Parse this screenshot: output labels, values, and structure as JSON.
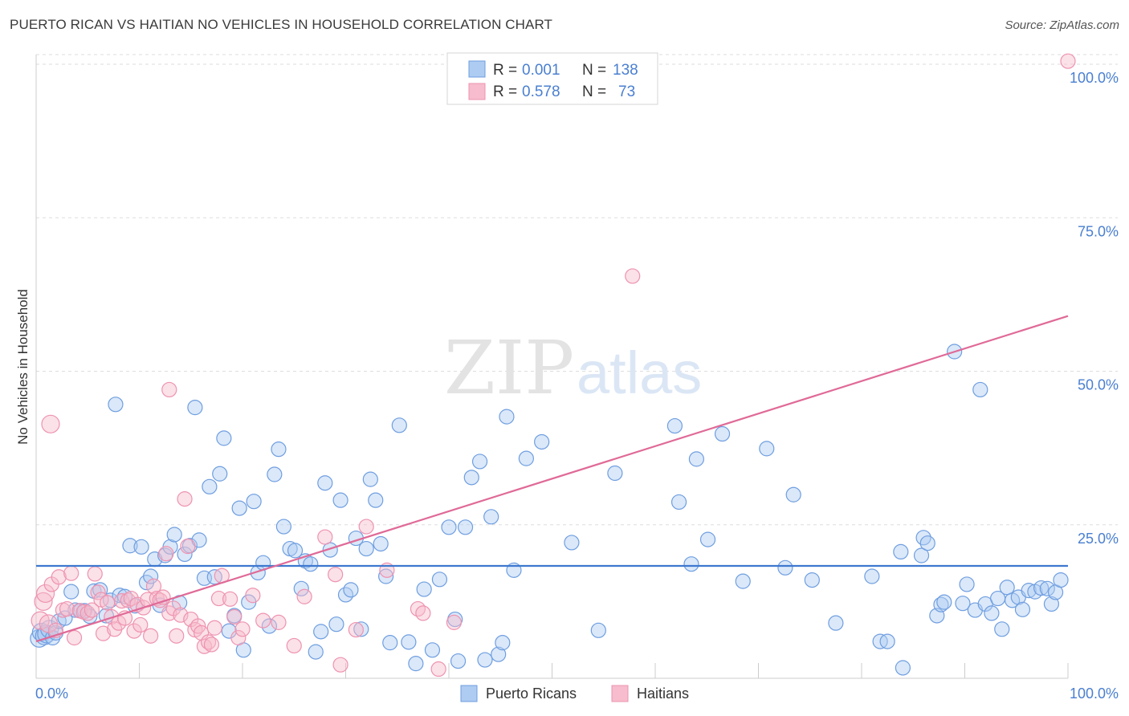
{
  "header": {
    "title": "PUERTO RICAN VS HAITIAN NO VEHICLES IN HOUSEHOLD CORRELATION CHART",
    "source": "Source: ZipAtlas.com"
  },
  "watermark": {
    "zip": "ZIP",
    "atlas": "atlas"
  },
  "colors": {
    "blue_fill": "#aecbf2",
    "blue_stroke": "#6f9ee0",
    "blue_line": "#3d78cf",
    "pink_fill": "#f7bccd",
    "pink_stroke": "#ee93b0",
    "pink_line": "#e06a97",
    "tick_text": "#4a7fd0",
    "grid": "#dddddd"
  },
  "legend": {
    "row1": {
      "r_label": "R =",
      "r_value": "0.001",
      "n_label": "N =",
      "n_value": "138"
    },
    "row2": {
      "r_label": "R =",
      "r_value": "0.578",
      "n_label": "N =",
      "n_value": "73"
    }
  },
  "chart_data": {
    "type": "scatter",
    "title": "PUERTO RICAN VS HAITIAN NO VEHICLES IN HOUSEHOLD CORRELATION CHART",
    "xlabel": "",
    "ylabel": "No Vehicles in Household",
    "xlim": [
      0,
      100
    ],
    "ylim": [
      0,
      100
    ],
    "x_tick_labels": [
      "0.0%",
      "100.0%"
    ],
    "y_ticks": [
      {
        "value": 25,
        "label": "25.0%"
      },
      {
        "value": 50,
        "label": "50.0%"
      },
      {
        "value": 75,
        "label": "75.0%"
      },
      {
        "value": 100,
        "label": "100.0%"
      }
    ],
    "legend_position": "top-center",
    "series": [
      {
        "name": "Puerto Ricans",
        "color": "blue",
        "R": 0.001,
        "N": 138,
        "trend": {
          "x0": 0,
          "y0": 18.3,
          "x1": 100,
          "y1": 18.3
        },
        "points": [
          [
            0.3,
            6.5
          ],
          [
            0.5,
            7.5
          ],
          [
            0.8,
            6.9
          ],
          [
            1.0,
            7.2
          ],
          [
            1.3,
            8.0
          ],
          [
            1.6,
            6.6
          ],
          [
            1.9,
            7.4
          ],
          [
            2.2,
            9.3
          ],
          [
            2.8,
            9.8
          ],
          [
            3.4,
            14.1
          ],
          [
            3.8,
            11.1
          ],
          [
            4.3,
            11.0
          ],
          [
            4.7,
            11.0
          ],
          [
            5.2,
            10.1
          ],
          [
            5.6,
            14.2
          ],
          [
            6.2,
            14.4
          ],
          [
            6.8,
            10.2
          ],
          [
            7.2,
            12.7
          ],
          [
            7.7,
            44.6
          ],
          [
            8.1,
            13.5
          ],
          [
            8.6,
            13.3
          ],
          [
            9.1,
            21.6
          ],
          [
            9.6,
            11.8
          ],
          [
            10.2,
            21.4
          ],
          [
            10.7,
            15.6
          ],
          [
            11.1,
            16.6
          ],
          [
            11.5,
            19.4
          ],
          [
            12.0,
            11.9
          ],
          [
            12.5,
            20.0
          ],
          [
            13.0,
            21.4
          ],
          [
            13.4,
            23.4
          ],
          [
            13.9,
            12.3
          ],
          [
            14.4,
            20.2
          ],
          [
            14.9,
            21.6
          ],
          [
            15.4,
            44.1
          ],
          [
            15.8,
            22.5
          ],
          [
            16.3,
            16.3
          ],
          [
            16.8,
            31.2
          ],
          [
            17.3,
            16.5
          ],
          [
            17.8,
            33.3
          ],
          [
            18.2,
            39.1
          ],
          [
            18.7,
            7.7
          ],
          [
            19.2,
            10.2
          ],
          [
            19.7,
            27.7
          ],
          [
            20.1,
            4.6
          ],
          [
            20.6,
            12.4
          ],
          [
            21.1,
            28.8
          ],
          [
            21.5,
            17.2
          ],
          [
            22.0,
            18.8
          ],
          [
            22.6,
            8.5
          ],
          [
            23.1,
            33.2
          ],
          [
            23.5,
            37.3
          ],
          [
            24.0,
            24.7
          ],
          [
            24.6,
            21.1
          ],
          [
            25.1,
            20.8
          ],
          [
            25.7,
            14.6
          ],
          [
            26.1,
            19.1
          ],
          [
            26.6,
            18.6
          ],
          [
            27.1,
            4.3
          ],
          [
            27.6,
            7.6
          ],
          [
            28.0,
            31.8
          ],
          [
            28.5,
            20.9
          ],
          [
            29.1,
            8.8
          ],
          [
            29.5,
            29.0
          ],
          [
            30.0,
            13.6
          ],
          [
            30.5,
            14.4
          ],
          [
            31.0,
            22.8
          ],
          [
            31.5,
            8.0
          ],
          [
            32.0,
            21.1
          ],
          [
            32.4,
            32.4
          ],
          [
            32.9,
            29.0
          ],
          [
            33.4,
            21.9
          ],
          [
            33.9,
            16.6
          ],
          [
            34.3,
            5.8
          ],
          [
            35.2,
            41.2
          ],
          [
            36.1,
            5.9
          ],
          [
            36.8,
            2.4
          ],
          [
            37.6,
            14.5
          ],
          [
            38.4,
            4.6
          ],
          [
            39.1,
            16.1
          ],
          [
            40.0,
            24.6
          ],
          [
            40.6,
            9.6
          ],
          [
            40.9,
            2.8
          ],
          [
            41.6,
            24.6
          ],
          [
            42.2,
            32.7
          ],
          [
            43.0,
            35.3
          ],
          [
            43.5,
            3.0
          ],
          [
            44.1,
            26.3
          ],
          [
            44.8,
            3.9
          ],
          [
            45.2,
            5.8
          ],
          [
            45.6,
            42.6
          ],
          [
            46.3,
            17.6
          ],
          [
            47.5,
            35.8
          ],
          [
            49.0,
            38.5
          ],
          [
            51.9,
            22.1
          ],
          [
            54.5,
            7.8
          ],
          [
            56.1,
            33.4
          ],
          [
            61.9,
            41.1
          ],
          [
            62.3,
            28.7
          ],
          [
            63.5,
            18.6
          ],
          [
            64.0,
            35.7
          ],
          [
            65.1,
            22.6
          ],
          [
            66.5,
            39.8
          ],
          [
            68.5,
            15.8
          ],
          [
            70.8,
            37.4
          ],
          [
            72.6,
            18.0
          ],
          [
            73.4,
            29.9
          ],
          [
            75.2,
            16.0
          ],
          [
            77.5,
            9.0
          ],
          [
            81.0,
            16.6
          ],
          [
            81.8,
            6.0
          ],
          [
            82.5,
            6.0
          ],
          [
            83.8,
            20.6
          ],
          [
            84.0,
            1.7
          ],
          [
            85.8,
            20.0
          ],
          [
            86.0,
            22.9
          ],
          [
            86.4,
            22.0
          ],
          [
            87.3,
            10.2
          ],
          [
            87.7,
            12.0
          ],
          [
            88.0,
            12.4
          ],
          [
            89.0,
            53.2
          ],
          [
            89.8,
            12.2
          ],
          [
            90.2,
            15.3
          ],
          [
            91.0,
            11.1
          ],
          [
            91.5,
            47.0
          ],
          [
            92.0,
            12.1
          ],
          [
            92.6,
            10.6
          ],
          [
            93.2,
            13.0
          ],
          [
            93.6,
            8.0
          ],
          [
            94.1,
            14.8
          ],
          [
            94.6,
            12.7
          ],
          [
            95.2,
            13.2
          ],
          [
            95.6,
            11.2
          ],
          [
            96.2,
            14.3
          ],
          [
            96.8,
            14.1
          ],
          [
            97.4,
            14.7
          ],
          [
            98.0,
            14.6
          ],
          [
            98.4,
            12.1
          ],
          [
            98.8,
            14.0
          ],
          [
            99.3,
            16.0
          ]
        ]
      },
      {
        "name": "Haitians",
        "color": "pink",
        "R": 0.578,
        "N": 73,
        "trend": {
          "x0": 0,
          "y0": 6.0,
          "x1": 100,
          "y1": 59.0
        },
        "points": [
          [
            0.4,
            9.4
          ],
          [
            0.7,
            12.5
          ],
          [
            0.9,
            13.8
          ],
          [
            1.2,
            8.9
          ],
          [
            1.5,
            15.3
          ],
          [
            1.4,
            41.4
          ],
          [
            1.9,
            7.8
          ],
          [
            2.2,
            16.5
          ],
          [
            2.6,
            11.1
          ],
          [
            3.0,
            11.3
          ],
          [
            3.4,
            17.1
          ],
          [
            3.7,
            6.6
          ],
          [
            4.2,
            11.0
          ],
          [
            4.6,
            10.8
          ],
          [
            5.0,
            10.6
          ],
          [
            5.4,
            11.1
          ],
          [
            5.7,
            17.0
          ],
          [
            6.0,
            14.0
          ],
          [
            6.3,
            12.8
          ],
          [
            6.5,
            7.3
          ],
          [
            6.9,
            12.3
          ],
          [
            7.3,
            10.0
          ],
          [
            7.6,
            8.0
          ],
          [
            8.0,
            9.0
          ],
          [
            8.3,
            12.6
          ],
          [
            8.6,
            9.8
          ],
          [
            8.9,
            12.7
          ],
          [
            9.2,
            13.0
          ],
          [
            9.5,
            7.7
          ],
          [
            9.8,
            12.0
          ],
          [
            10.1,
            8.7
          ],
          [
            10.4,
            11.5
          ],
          [
            10.8,
            12.8
          ],
          [
            11.1,
            6.9
          ],
          [
            11.4,
            15.0
          ],
          [
            11.7,
            13.0
          ],
          [
            12.0,
            12.7
          ],
          [
            12.3,
            13.2
          ],
          [
            12.6,
            20.3
          ],
          [
            12.9,
            10.6
          ],
          [
            12.9,
            47.0
          ],
          [
            13.3,
            11.4
          ],
          [
            13.6,
            6.9
          ],
          [
            14.0,
            10.3
          ],
          [
            14.4,
            29.2
          ],
          [
            14.7,
            21.5
          ],
          [
            15.0,
            9.6
          ],
          [
            15.4,
            7.9
          ],
          [
            15.7,
            8.5
          ],
          [
            16.0,
            7.4
          ],
          [
            16.3,
            5.2
          ],
          [
            16.7,
            5.9
          ],
          [
            17.0,
            5.5
          ],
          [
            17.3,
            8.2
          ],
          [
            17.7,
            13.0
          ],
          [
            18.0,
            16.7
          ],
          [
            18.8,
            12.9
          ],
          [
            19.2,
            10.0
          ],
          [
            19.6,
            6.6
          ],
          [
            20.0,
            8.0
          ],
          [
            21.0,
            13.5
          ],
          [
            22.0,
            9.4
          ],
          [
            23.5,
            9.1
          ],
          [
            25.0,
            5.3
          ],
          [
            26.0,
            13.3
          ],
          [
            28.0,
            23.0
          ],
          [
            29.0,
            16.9
          ],
          [
            29.5,
            2.2
          ],
          [
            31.0,
            7.9
          ],
          [
            32.0,
            24.7
          ],
          [
            34.0,
            17.6
          ],
          [
            37.0,
            11.3
          ],
          [
            37.5,
            10.6
          ],
          [
            39.0,
            1.5
          ],
          [
            40.5,
            9.1
          ],
          [
            57.8,
            65.5
          ],
          [
            100.0,
            100.5
          ]
        ]
      }
    ]
  },
  "bottom_legend": {
    "item1": "Puerto Ricans",
    "item2": "Haitians"
  }
}
